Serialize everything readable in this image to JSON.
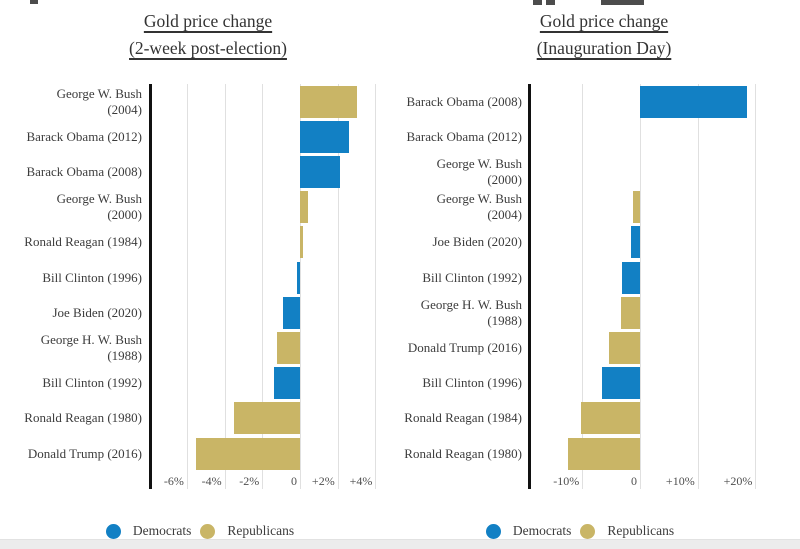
{
  "legend": {
    "democrats_label": "Democrats",
    "republicans_label": "Republicans"
  },
  "colors": {
    "democrats": "#1280c4",
    "republicans": "#c9b566",
    "axis_line": "#111111",
    "gridline": "#e0e0e0",
    "title_text": "#333333",
    "label_text": "#3c3c3c",
    "tick_text": "#4f4f4f",
    "background": "#ffffff",
    "bottom_strip": "#ececec"
  },
  "chart_data": [
    {
      "type": "bar",
      "orientation": "horizontal",
      "title": "Gold price change (2-week post-election)",
      "title_line1": "Gold price change",
      "title_line2": "(2-week post-election)",
      "xlabel": "",
      "ylabel": "",
      "unit": "%",
      "xlim": [
        -8,
        4.8
      ],
      "grid": true,
      "legend_position": "bottom",
      "categories": [
        "George W. Bush\n(2004)",
        "Barack Obama (2012)",
        "Barack Obama (2008)",
        "George W. Bush\n(2000)",
        "Ronald Reagan (1984)",
        "Bill Clinton (1996)",
        "Joe Biden (2020)",
        "George H. W. Bush\n(1988)",
        "Bill Clinton (1992)",
        "Ronald Reagan (1980)",
        "Donald Trump (2016)"
      ],
      "values": [
        3.0,
        2.6,
        2.1,
        0.4,
        0.15,
        -0.15,
        -0.9,
        -1.2,
        -1.4,
        -3.5,
        -5.5
      ],
      "parties": [
        "R",
        "D",
        "D",
        "R",
        "R",
        "D",
        "D",
        "R",
        "D",
        "R",
        "R"
      ],
      "ticks": [
        {
          "label": "-6%",
          "value": -6
        },
        {
          "label": "-4%",
          "value": -4
        },
        {
          "label": "-2%",
          "value": -2
        },
        {
          "label": "0",
          "value": 0
        },
        {
          "label": "+2%",
          "value": 2
        },
        {
          "label": "+4%",
          "value": 4
        }
      ]
    },
    {
      "type": "bar",
      "orientation": "horizontal",
      "title": "Gold price change (Inauguration Day)",
      "title_line1": "Gold price change",
      "title_line2": "(Inauguration Day)",
      "xlabel": "",
      "ylabel": "",
      "unit": "%",
      "xlim": [
        -19,
        21
      ],
      "grid": true,
      "legend_position": "bottom",
      "categories": [
        "Barack Obama (2008)",
        "Barack Obama (2012)",
        "George W. Bush\n(2000)",
        "George W. Bush\n(2004)",
        "Joe Biden (2020)",
        "Bill Clinton (1992)",
        "George H. W. Bush\n(1988)",
        "Donald Trump (2016)",
        "Bill Clinton (1996)",
        "Ronald Reagan (1984)",
        "Ronald Reagan (1980)"
      ],
      "values": [
        18.6,
        0,
        0,
        -1.2,
        -1.6,
        -3.1,
        -3.3,
        -5.4,
        -6.6,
        -10.2,
        -12.4
      ],
      "parties": [
        "D",
        "D",
        "R",
        "R",
        "D",
        "D",
        "R",
        "R",
        "D",
        "R",
        "R"
      ],
      "ticks": [
        {
          "label": "-10%",
          "value": -10
        },
        {
          "label": "0",
          "value": 0
        },
        {
          "label": "+10%",
          "value": 10
        },
        {
          "label": "+20%",
          "value": 20
        }
      ]
    }
  ]
}
